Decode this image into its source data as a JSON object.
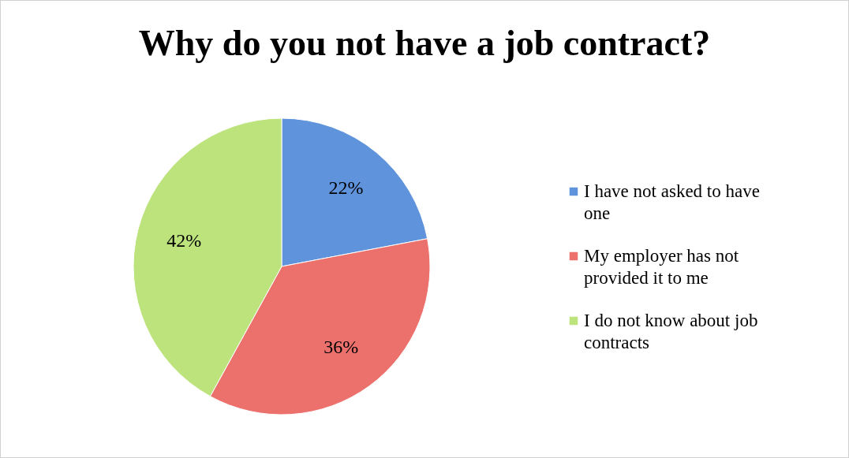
{
  "chart_data": {
    "type": "pie",
    "title": "Why do you not have a job contract?",
    "categories": [
      "I have not asked to have one",
      "My employer has not provided it to me",
      "I do not know about job contracts"
    ],
    "values": [
      22,
      36,
      42
    ],
    "colors": [
      "#5f93dc",
      "#ec716c",
      "#bde37c"
    ],
    "value_labels": [
      "22%",
      "36%",
      "42%"
    ],
    "legend": "right"
  }
}
